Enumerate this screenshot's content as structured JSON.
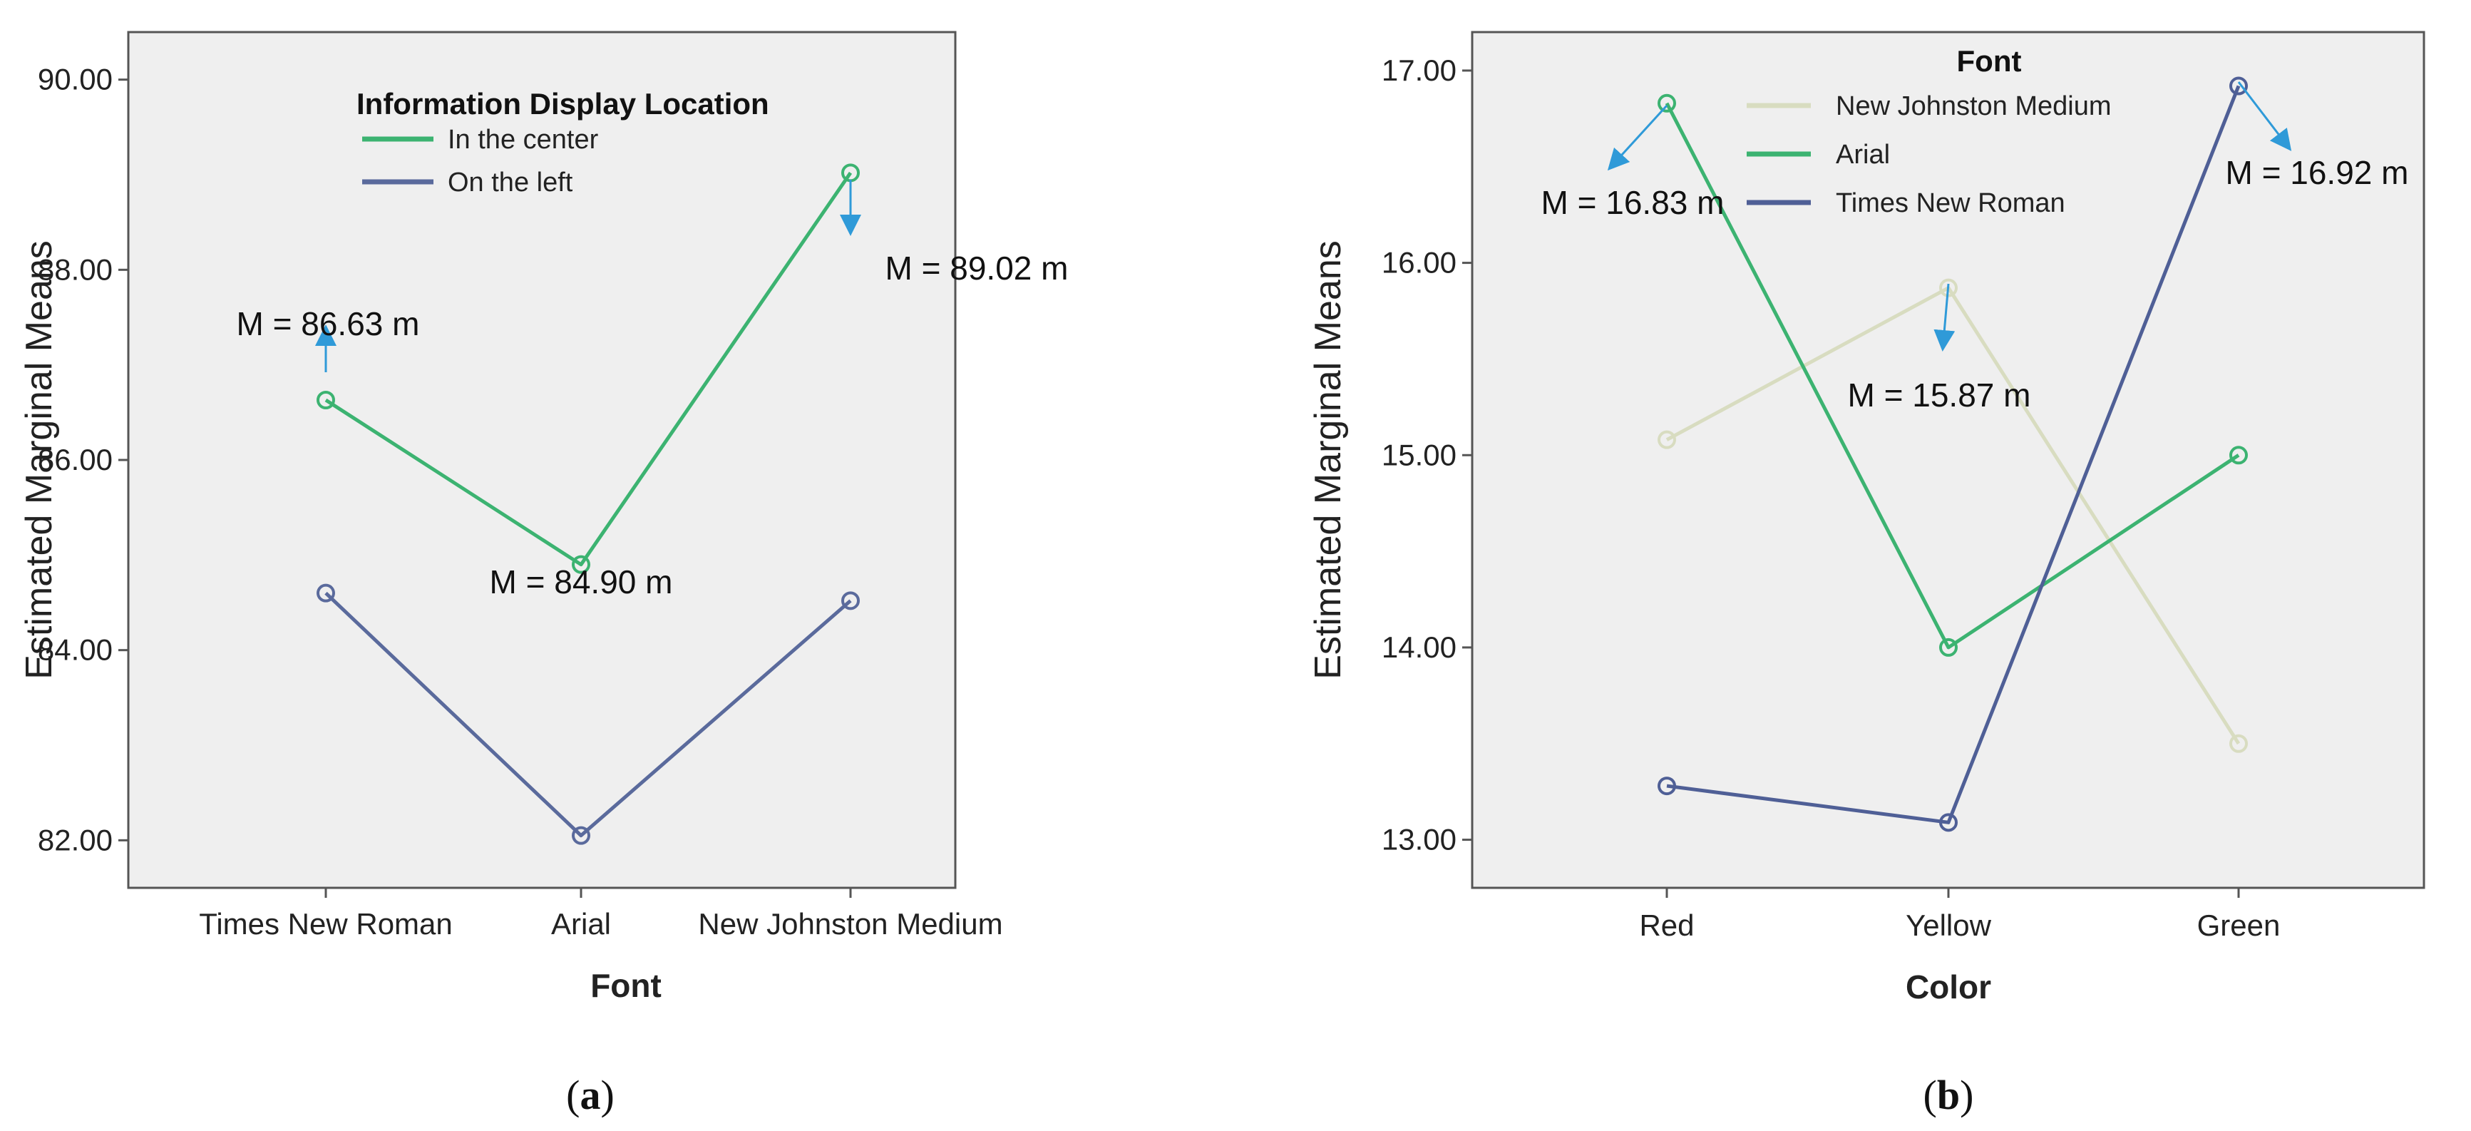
{
  "chart_data": [
    {
      "type": "line",
      "panel": "a",
      "panel_label_open": "(",
      "panel_label_letter": "a",
      "panel_label_close": ")",
      "xlabel": "Font",
      "ylabel": "Estimated Marginal Means",
      "categories": [
        "Times New Roman",
        "Arial",
        "New Johnston Medium"
      ],
      "ylim": [
        81.5,
        90.5
      ],
      "yticks": [
        82,
        84,
        86,
        88,
        90
      ],
      "ytick_labels": [
        "82.00",
        "84.00",
        "86.00",
        "88.00",
        "90.00"
      ],
      "legend_title": "Information Display Location",
      "series": [
        {
          "name": "In the center",
          "color": "#3cb371",
          "values": [
            86.63,
            84.9,
            89.02
          ]
        },
        {
          "name": "On the left",
          "color": "#5a6a9c",
          "values": [
            84.6,
            82.05,
            84.52
          ]
        }
      ],
      "annotations": [
        {
          "text": "M = 86.63 m",
          "category": "Times New Roman",
          "value": 86.63,
          "arrow": "up"
        },
        {
          "text": "M = 84.90 m",
          "category": "Arial",
          "value": 84.9,
          "arrow": "none"
        },
        {
          "text": "M = 89.02 m",
          "category": "New Johnston Medium",
          "value": 89.02,
          "arrow": "down"
        }
      ]
    },
    {
      "type": "line",
      "panel": "b",
      "panel_label_open": "(",
      "panel_label_letter": "b",
      "panel_label_close": ")",
      "xlabel": "Color",
      "ylabel": "Estimated Marginal Means",
      "categories": [
        "Red",
        "Yellow",
        "Green"
      ],
      "ylim": [
        12.75,
        17.2
      ],
      "yticks": [
        13,
        14,
        15,
        16,
        17
      ],
      "ytick_labels": [
        "13.00",
        "14.00",
        "15.00",
        "16.00",
        "17.00"
      ],
      "legend_title": "Font",
      "series": [
        {
          "name": "New Johnston Medium",
          "color": "#d8dcc0",
          "values": [
            15.08,
            15.87,
            13.5
          ]
        },
        {
          "name": "Arial",
          "color": "#3cb371",
          "values": [
            16.83,
            14.0,
            15.0
          ]
        },
        {
          "name": "Times New Roman",
          "color": "#4f5f96",
          "values": [
            13.28,
            13.09,
            16.92
          ]
        }
      ],
      "annotations": [
        {
          "text": "M = 16.83 m",
          "category": "Red",
          "value": 16.83,
          "arrow": "down-left"
        },
        {
          "text": "M = 15.87 m",
          "category": "Yellow",
          "value": 15.87,
          "arrow": "down"
        },
        {
          "text": "M = 16.92 m",
          "category": "Green",
          "value": 16.92,
          "arrow": "down-right"
        }
      ]
    }
  ]
}
